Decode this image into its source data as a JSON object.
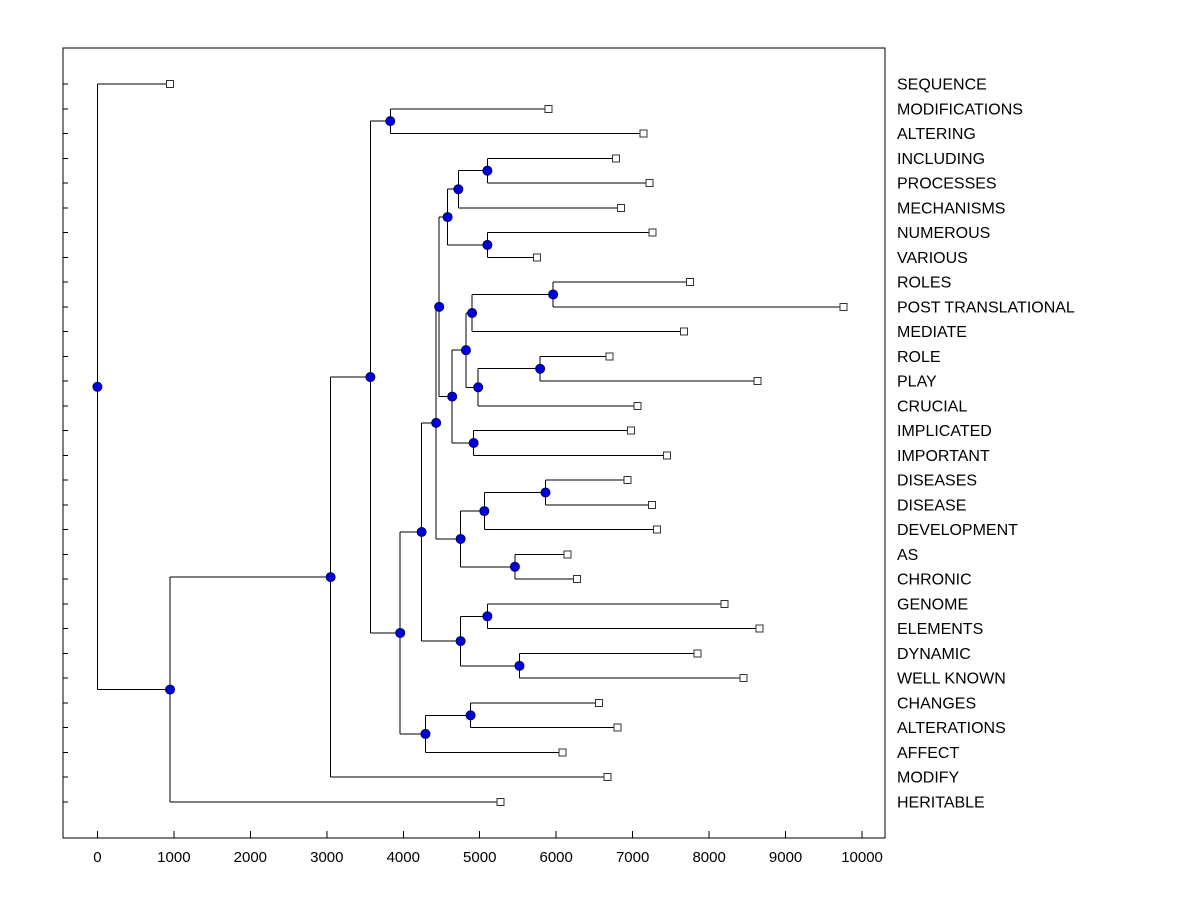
{
  "chart_data": {
    "type": "dendrogram",
    "orientation": "horizontal",
    "title": "",
    "xlabel": "",
    "ylabel": "",
    "grid": false,
    "x_axis": {
      "domain": [
        -450,
        10300
      ],
      "ticks": [
        0,
        1000,
        2000,
        3000,
        4000,
        5000,
        6000,
        7000,
        8000,
        9000,
        10000
      ],
      "tick_labels": [
        "0",
        "1000",
        "2000",
        "3000",
        "4000",
        "5000",
        "6000",
        "7000",
        "8000",
        "9000",
        "10000"
      ]
    },
    "leaf_order": [
      "SEQUENCE",
      "MODIFICATIONS",
      "ALTERING",
      "INCLUDING",
      "PROCESSES",
      "MECHANISMS",
      "NUMEROUS",
      "VARIOUS",
      "ROLES",
      "POST TRANSLATIONAL",
      "MEDIATE",
      "ROLE",
      "PLAY",
      "CRUCIAL",
      "IMPLICATED",
      "IMPORTANT",
      "DISEASES",
      "DISEASE",
      "DEVELOPMENT",
      "AS",
      "CHRONIC",
      "GENOME",
      "ELEMENTS",
      "DYNAMIC",
      "WELL KNOWN",
      "CHANGES",
      "ALTERATIONS",
      "AFFECT",
      "MODIFY",
      "HERITABLE"
    ],
    "colors": {
      "background": "#ffffff",
      "branch": "#000000",
      "axis": "#000000",
      "internal_node_fill": "#0000dd",
      "internal_node_stroke": "#000066",
      "leaf_marker_fill": "#ffffff",
      "leaf_marker_stroke": "#333333",
      "text": "#000000"
    },
    "tree": {
      "v": 0,
      "children": [
        {
          "label": "SEQUENCE",
          "v": 950
        },
        {
          "v": 950,
          "children": [
            {
              "v": 3050,
              "children": [
                {
                  "v": 3570,
                  "children": [
                    {
                      "v": 3830,
                      "children": [
                        {
                          "label": "MODIFICATIONS",
                          "v": 5900
                        },
                        {
                          "label": "ALTERING",
                          "v": 7140
                        }
                      ]
                    },
                    {
                      "v": 3960,
                      "children": [
                        {
                          "v": 4240,
                          "children": [
                            {
                              "v": 4430,
                              "children": [
                                {
                                  "v": 4470,
                                  "children": [
                                    {
                                      "v": 4580,
                                      "children": [
                                        {
                                          "v": 4720,
                                          "children": [
                                            {
                                              "v": 5100,
                                              "children": [
                                                {
                                                  "label": "INCLUDING",
                                                  "v": 6780
                                                },
                                                {
                                                  "label": "PROCESSES",
                                                  "v": 7220
                                                }
                                              ]
                                            },
                                            {
                                              "label": "MECHANISMS",
                                              "v": 6850
                                            }
                                          ]
                                        },
                                        {
                                          "v": 5100,
                                          "children": [
                                            {
                                              "label": "NUMEROUS",
                                              "v": 7260
                                            },
                                            {
                                              "label": "VARIOUS",
                                              "v": 5750
                                            }
                                          ]
                                        }
                                      ]
                                    },
                                    {
                                      "v": 4640,
                                      "children": [
                                        {
                                          "v": 4820,
                                          "children": [
                                            {
                                              "v": 4900,
                                              "children": [
                                                {
                                                  "v": 5960,
                                                  "children": [
                                                    {
                                                      "label": "ROLES",
                                                      "v": 7750
                                                    },
                                                    {
                                                      "label": "POST TRANSLATIONAL",
                                                      "v": 9760
                                                    }
                                                  ]
                                                },
                                                {
                                                  "label": "MEDIATE",
                                                  "v": 7670
                                                }
                                              ]
                                            },
                                            {
                                              "v": 4980,
                                              "children": [
                                                {
                                                  "v": 5790,
                                                  "children": [
                                                    {
                                                      "label": "ROLE",
                                                      "v": 6700
                                                    },
                                                    {
                                                      "label": "PLAY",
                                                      "v": 8630
                                                    }
                                                  ]
                                                },
                                                {
                                                  "label": "CRUCIAL",
                                                  "v": 7060
                                                }
                                              ]
                                            }
                                          ]
                                        },
                                        {
                                          "v": 4920,
                                          "children": [
                                            {
                                              "label": "IMPLICATED",
                                              "v": 6980
                                            },
                                            {
                                              "label": "IMPORTANT",
                                              "v": 7450
                                            }
                                          ]
                                        }
                                      ]
                                    }
                                  ]
                                },
                                {
                                  "v": 4750,
                                  "children": [
                                    {
                                      "v": 5060,
                                      "children": [
                                        {
                                          "v": 5860,
                                          "children": [
                                            {
                                              "label": "DISEASES",
                                              "v": 6930
                                            },
                                            {
                                              "label": "DISEASE",
                                              "v": 7250
                                            }
                                          ]
                                        },
                                        {
                                          "label": "DEVELOPMENT",
                                          "v": 7320
                                        }
                                      ]
                                    },
                                    {
                                      "v": 5460,
                                      "children": [
                                        {
                                          "label": "AS",
                                          "v": 6150
                                        },
                                        {
                                          "label": "CHRONIC",
                                          "v": 6270
                                        }
                                      ]
                                    }
                                  ]
                                }
                              ]
                            },
                            {
                              "v": 4750,
                              "children": [
                                {
                                  "v": 5100,
                                  "children": [
                                    {
                                      "label": "GENOME",
                                      "v": 8200
                                    },
                                    {
                                      "label": "ELEMENTS",
                                      "v": 8660
                                    }
                                  ]
                                },
                                {
                                  "v": 5520,
                                  "children": [
                                    {
                                      "label": "DYNAMIC",
                                      "v": 7850
                                    },
                                    {
                                      "label": "WELL KNOWN",
                                      "v": 8450
                                    }
                                  ]
                                }
                              ]
                            }
                          ]
                        },
                        {
                          "v": 4290,
                          "children": [
                            {
                              "v": 4880,
                              "children": [
                                {
                                  "label": "CHANGES",
                                  "v": 6560
                                },
                                {
                                  "label": "ALTERATIONS",
                                  "v": 6800
                                }
                              ]
                            },
                            {
                              "label": "AFFECT",
                              "v": 6080
                            }
                          ]
                        }
                      ]
                    }
                  ]
                },
                {
                  "label": "MODIFY",
                  "v": 6670
                }
              ]
            },
            {
              "label": "HERITABLE",
              "v": 5270
            }
          ]
        }
      ]
    }
  }
}
